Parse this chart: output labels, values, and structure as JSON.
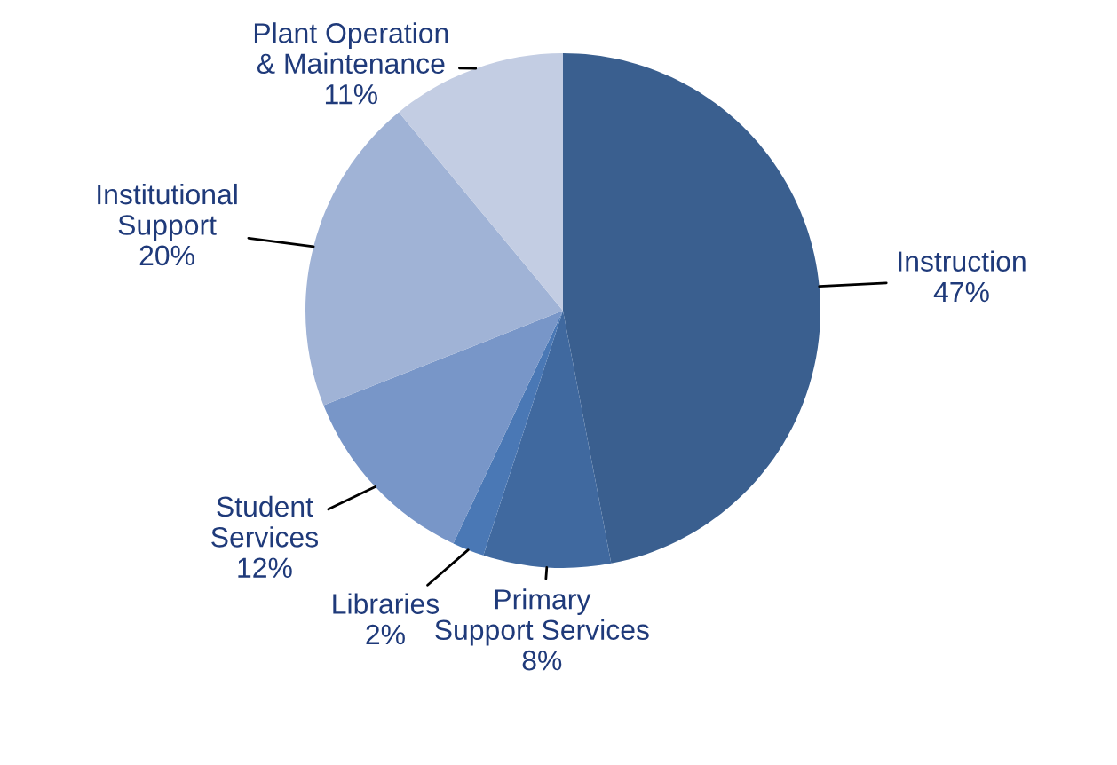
{
  "chart_data": {
    "type": "pie",
    "categories": [
      "Instruction",
      "Primary\nSupport Services",
      "Libraries",
      "Student\nServices",
      "Institutional\nSupport",
      "Plant Operation\n& Maintenance"
    ],
    "values": [
      47,
      8,
      2,
      12,
      20,
      11
    ],
    "colors": [
      "#3a5f8f",
      "#40699f",
      "#4a78b5",
      "#7896c8",
      "#a0b3d6",
      "#c3cde3"
    ],
    "value_labels": [
      "47%",
      "8%",
      "2%",
      "12%",
      "20%",
      "11%"
    ]
  }
}
